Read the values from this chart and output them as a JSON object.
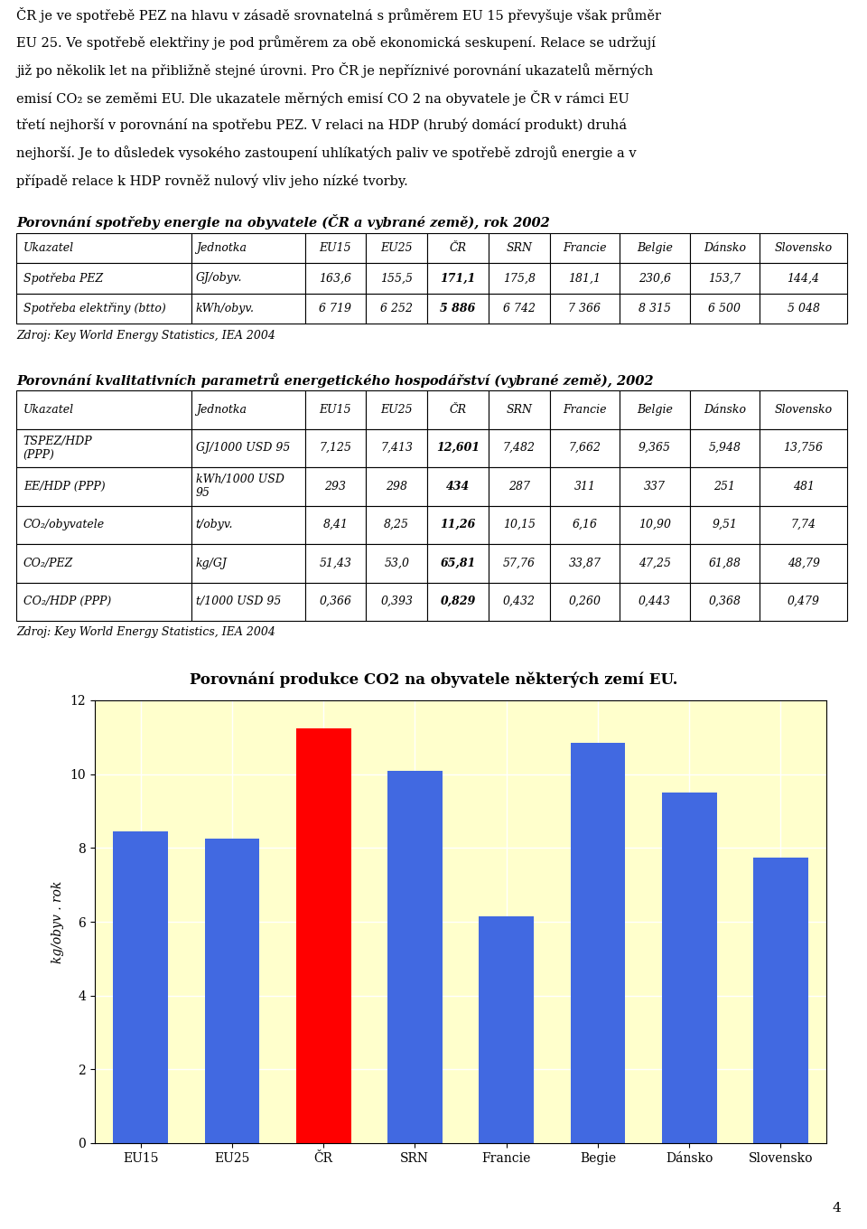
{
  "page_text_lines": [
    "ČR je ve spotřebě PEZ na hlavu v zásadě srovnatelná s průměrem EU 15 převyšuje však průměr",
    "EU 25. Ve spotřebě elektřiny je pod průměrem za obě ekonomická seskupení. Relace se udržují",
    "již po několik let na přibližně stejné úrovni. Pro ČR je nepříznivé porovnání ukazatelů měrných",
    "emisí CO₂ se zeměmi EU. Dle ukazatele měrných emisí CO 2 na obyvatele je ČR v rámci EU",
    "třetí nejhorší v porovnání na spotřebu PEZ. V relaci na HDP (hrubý domácí produkt) druhá",
    "nejhorší. Je to důsledek vysokého zastoupení uhlíkatých paliv ve spotřebě zdrojů energie a v",
    "případě relace k HDP rovněž nulový vliv jeho nízké tvorby."
  ],
  "table1_title": "Porovnání spotřeby energie na obyvatele (ČR a vybrané země), rok 2002",
  "table1_headers": [
    "Ukazatel",
    "Jednotka",
    "EU15",
    "EU25",
    "ČR",
    "SRN",
    "Francie",
    "Belgie",
    "Dánsko",
    "Slovensko"
  ],
  "table1_rows": [
    [
      "Spotřeba PEZ",
      "GJ/obyv.",
      "163,6",
      "155,5",
      "171,1",
      "175,8",
      "181,1",
      "230,6",
      "153,7",
      "144,4"
    ],
    [
      "Spotřeba elektřiny (btto)",
      "kWh/obyv.",
      "6 719",
      "6 252",
      "5 886",
      "6 742",
      "7 366",
      "8 315",
      "6 500",
      "5 048"
    ]
  ],
  "table1_bold_col": 4,
  "source1": "Zdroj: Key World Energy Statistics, IEA 2004",
  "table2_title": "Porovnání kvalitativních parametrů energetického hospodářství (vybrané země), 2002",
  "table2_headers": [
    "Ukazatel",
    "Jednotka",
    "EU15",
    "EU25",
    "ČR",
    "SRN",
    "Francie",
    "Belgie",
    "Dánsko",
    "Slovensko"
  ],
  "table2_rows": [
    [
      "TSPEZ/HDP\n(PPP)",
      "GJ/1000 USD 95",
      "7,125",
      "7,413",
      "12,601",
      "7,482",
      "7,662",
      "9,365",
      "5,948",
      "13,756"
    ],
    [
      "EE/HDP (PPP)",
      "kWh/1000 USD\n95",
      "293",
      "298",
      "434",
      "287",
      "311",
      "337",
      "251",
      "481"
    ],
    [
      "CO₂/obyvatele",
      "t/obyv.",
      "8,41",
      "8,25",
      "11,26",
      "10,15",
      "6,16",
      "10,90",
      "9,51",
      "7,74"
    ],
    [
      "CO₂/PEZ",
      "kg/GJ",
      "51,43",
      "53,0",
      "65,81",
      "57,76",
      "33,87",
      "47,25",
      "61,88",
      "48,79"
    ],
    [
      "CO₂/HDP (PPP)",
      "t/1000 USD 95",
      "0,366",
      "0,393",
      "0,829",
      "0,432",
      "0,260",
      "0,443",
      "0,368",
      "0,479"
    ]
  ],
  "table2_bold_col": 4,
  "source2": "Zdroj: Key World Energy Statistics, IEA 2004",
  "chart_title": "Porovnání produkce CO2 na obyvatele některých zemí EU.",
  "chart_categories": [
    "EU15",
    "EU25",
    "ČR",
    "SRN",
    "Francie",
    "Begie",
    "Dánsko",
    "Slovensko"
  ],
  "chart_values": [
    8.45,
    8.25,
    11.25,
    10.1,
    6.15,
    10.85,
    9.5,
    7.75
  ],
  "chart_colors": [
    "#4169e1",
    "#4169e1",
    "#ff0000",
    "#4169e1",
    "#4169e1",
    "#4169e1",
    "#4169e1",
    "#4169e1"
  ],
  "chart_ylabel": "kg/obyv . rok",
  "chart_ylim": [
    0,
    12
  ],
  "chart_yticks": [
    0,
    2,
    4,
    6,
    8,
    10,
    12
  ],
  "chart_bg_color": "#ffffcc",
  "page_number": "4",
  "background_color": "#ffffff"
}
